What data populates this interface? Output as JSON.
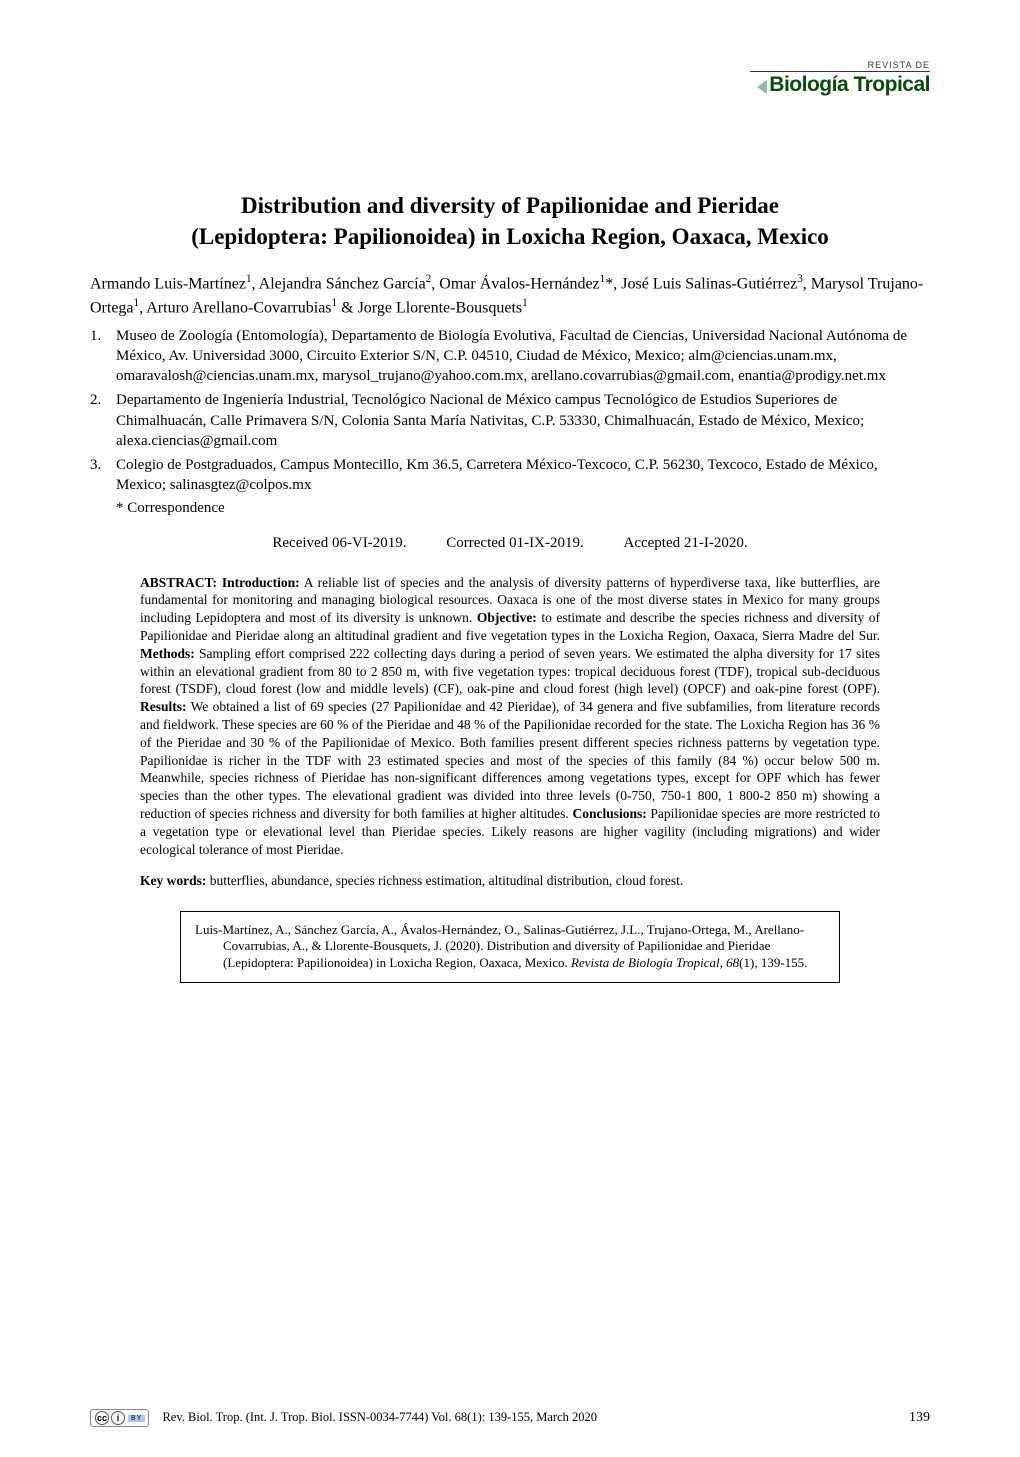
{
  "journal_header": {
    "supertitle": "REVISTA DE",
    "name": "Biología Tropical",
    "title_color": "#0a4a0a",
    "supertitle_fontsize": 9,
    "name_fontsize": 21
  },
  "title": {
    "line1": "Distribution and diversity of Papilionidae and Pieridae",
    "line2": "(Lepidoptera: Papilionoidea) in Loxicha Region, Oaxaca, Mexico",
    "fontsize": 23
  },
  "authors_html": "Armando Luis-Martínez<sup>1</sup>, Alejandra Sánchez García<sup>2</sup>, Omar Ávalos-Hernández<sup>1</sup>*, José Luis Salinas-Gutiérrez<sup>3</sup>, Marysol Trujano-Ortega<sup>1</sup>, Arturo Arellano-Covarrubias<sup>1</sup> & Jorge Llorente-Bousquets<sup>1</sup>",
  "affiliations": [
    {
      "num": "1.",
      "text": "Museo de Zoología (Entomología), Departamento de Biología Evolutiva, Facultad de Ciencias, Universidad Nacional Autónoma de México, Av. Universidad 3000, Circuito Exterior S/N, C.P. 04510, Ciudad de México, Mexico; alm@ciencias.unam.mx, omaravalosh@ciencias.unam.mx, marysol_trujano@yahoo.com.mx, arellano.covarrubias@gmail.com, enantia@prodigy.net.mx"
    },
    {
      "num": "2.",
      "text": "Departamento de Ingeniería Industrial, Tecnológico Nacional de México campus Tecnológico de Estudios Superiores de Chimalhuacán, Calle Primavera S/N, Colonia Santa María Nativitas, C.P. 53330, Chimalhuacán, Estado de México, Mexico; alexa.ciencias@gmail.com"
    },
    {
      "num": "3.",
      "text": "Colegio de Postgraduados, Campus Montecillo, Km 36.5, Carretera México-Texcoco, C.P. 56230, Texcoco, Estado de México, Mexico; salinasgtez@colpos.mx"
    }
  ],
  "correspondence": "* Correspondence",
  "dates": {
    "received": "Received 06-VI-2019.",
    "corrected": "Corrected 01-IX-2019.",
    "accepted": "Accepted 21-I-2020."
  },
  "abstract": {
    "label_intro": "ABSTRACT: Introduction:",
    "text_intro": " A reliable list of species and the analysis of diversity patterns of hyperdiverse taxa, like butterflies, are fundamental for monitoring and managing biological resources. Oaxaca is one of the most diverse states in Mexico for many groups including Lepidoptera and most of its diversity is unknown. ",
    "label_obj": "Objective:",
    "text_obj": " to estimate and describe the species richness and diversity of Papilionidae and Pieridae along an altitudinal gradient and five vegetation types in the Loxicha Region, Oaxaca, Sierra Madre del Sur. ",
    "label_methods": "Methods:",
    "text_methods": " Sampling effort comprised 222 collecting days during a period of seven years. We estimated the alpha diversity for 17 sites within an elevational gradient from 80 to 2 850 m, with five vegetation types: tropical deciduous forest (TDF), tropical sub-deciduous forest (TSDF), cloud forest (low and middle levels) (CF), oak-pine and cloud forest (high level) (OPCF) and oak-pine forest (OPF). ",
    "label_results": "Results:",
    "text_results": " We obtained a list of 69 species (27 Papilionidae and 42 Pieridae), of 34 genera and five subfamilies, from literature records and fieldwork. These species are 60 % of the Pieridae and 48 % of the Papilionidae recorded for the state. The Loxicha Region has 36 % of the Pieridae and 30 % of the Papilionidae of Mexico. Both families present different species richness patterns by vegetation type. Papilionidae is richer in the TDF with 23 estimated species and most of the species of this family (84 %) occur below 500 m. Meanwhile, species richness of Pieridae has non-significant differences among vegetations types, except for OPF which has fewer species than the other types. The elevational gradient was divided into three levels (0-750, 750-1 800, 1 800-2 850 m) showing a reduction of species richness and diversity for both families at higher altitudes. ",
    "label_concl": "Conclusions:",
    "text_concl": " Papilionidae species are more restricted to a vegetation type or elevational level than Pieridae species. Likely reasons are higher vagility (including migrations) and wider ecological tolerance of most Pieridae."
  },
  "keywords": {
    "label": "Key words:",
    "text": " butterflies, abundance, species richness estimation, altitudinal distribution, cloud forest."
  },
  "citation": {
    "text_plain": "Luis-Martínez, A., Sánchez García, A., Ávalos-Hernández, O., Salinas-Gutiérrez, J.L., Trujano-Ortega, M., Arellano-Covarrubias, A., & Llorente-Bousquets, J. (2020). Distribution and diversity of Papilionidae and Pieridae (Lepidoptera: Papilionoidea) in Loxicha Region, Oaxaca, Mexico. ",
    "journal_italic": "Revista de Biología Tropical, 68",
    "pages": "(1), 139-155."
  },
  "footer": {
    "cc": "cc",
    "i_symbol": "i",
    "by": "BY",
    "journal_line": "Rev. Biol. Trop. (Int. J. Trop. Biol. ISSN-0034-7744) Vol. 68(1): 139-155, March 2020",
    "page_number": "139"
  },
  "colors": {
    "background": "#ffffff",
    "text": "#000000",
    "journal_green": "#0a4a0a",
    "chevron": "#9ab89a",
    "by_badge_bg": "#aac8e8"
  }
}
